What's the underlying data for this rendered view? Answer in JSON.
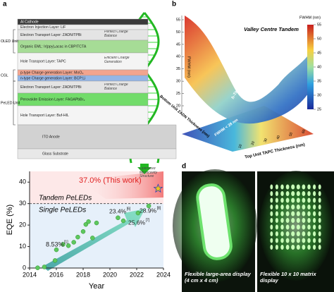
{
  "panel_a": {
    "label": "a",
    "layers": [
      "Al Cathode",
      "Electron Injection Layer: LiF",
      "Electron Transport Layer: ZADN/TPBi",
      "Organic EML: Ir(ppy)₂acac in CBP/TCTA",
      "Hole Transport Layer: TAPC",
      "p-type Charge generation Layer: MoO₃",
      "n-type Charge generation Layer: BCP:Li",
      "Electron Transport Layer: ZADN/TPBi",
      "Perovskite Emission Layer: FAGAPbBr₃",
      "Hole Transport Layer: Buf-HIL",
      "ITO Anode",
      "Glass Substrate"
    ],
    "units": [
      "OLED Unit",
      "CGL",
      "PeLED Unit"
    ],
    "notes": [
      "Perfect Charge Balance",
      "Efficient Charge Generation",
      "Perfect Charge Balance",
      "Optimized Microcavity Structure"
    ]
  },
  "panel_b": {
    "label": "b",
    "title": "Valley Centre Tandem",
    "valley_label": "h-Tandem Valley",
    "floor_label": "FWHM < 28 nm",
    "z_label": "FWHM (nm)",
    "colorbar_label": "FWHM (nm)",
    "x_label": "Top Unit TAPC Thickness (nm)",
    "y_label": "Bottom Unit ZADN Thickness (nm)",
    "zlim": [
      20,
      55
    ],
    "zticks": [
      20,
      25,
      30,
      35,
      40,
      45,
      50,
      55
    ],
    "colorbar_lim": [
      25,
      55
    ],
    "colorbar_ticks": [
      25,
      30,
      35,
      40,
      45,
      50,
      55
    ],
    "xticks": [
      10,
      20,
      30,
      40,
      50,
      60
    ]
  },
  "chart_data": {
    "type": "scatter",
    "xlabel": "Year",
    "ylabel": "EQE (%)",
    "xlim": [
      2014,
      2024
    ],
    "xticks": [
      2014,
      2016,
      2018,
      2020,
      2022,
      2024
    ],
    "ylim": [
      0,
      45
    ],
    "yticks": [
      0,
      10,
      20,
      30,
      40
    ],
    "x": [
      2014.6,
      2015.1,
      2015.9,
      2016.0,
      2016.5,
      2016.9,
      2017.3,
      2017.6,
      2018.0,
      2018.2,
      2018.4,
      2018.7,
      2019.0,
      2020.6,
      2021.0,
      2022.1,
      2022.9
    ],
    "values": [
      0.1,
      0.5,
      3.5,
      8.5,
      11,
      10.4,
      12,
      14.4,
      17,
      20.3,
      21.6,
      14,
      21,
      23.4,
      22,
      25.6,
      28.9
    ],
    "color": "#5ec85e",
    "highlight": {
      "x": 2023.6,
      "value": 37.0,
      "color": "#f2c21b"
    },
    "threshold": 30,
    "regions": [
      "Tandem PeLEDs",
      "Single PeLEDs"
    ],
    "annotations": [
      {
        "text": "37.0% (This work)"
      },
      {
        "text": "8.53%",
        "ref": "[1]"
      },
      {
        "text": "23.4%",
        "ref": "[6]"
      },
      {
        "text": "25.6%",
        "ref": "[7]"
      },
      {
        "text": "28.9%",
        "ref": "[8]"
      }
    ]
  },
  "panel_d": {
    "label": "d",
    "captions": [
      "Flexible large-area display (4 cm x 4 cm)",
      "Flexible 10 x 10 matrix display"
    ]
  }
}
